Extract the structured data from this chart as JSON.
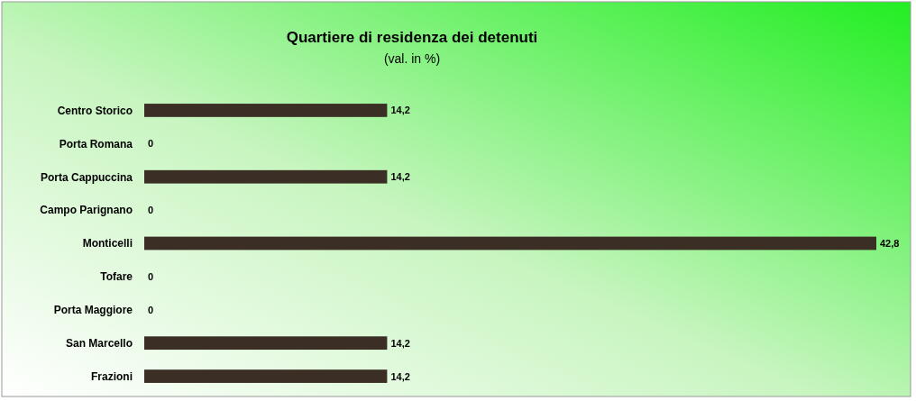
{
  "chart_data": {
    "type": "bar",
    "orientation": "horizontal",
    "title": "Quartiere di residenza dei detenuti",
    "subtitle": "(val. in %)",
    "categories": [
      "Centro Storico",
      "Porta Romana",
      "Porta Cappuccina",
      "Campo Parignano",
      "Monticelli",
      "Tofare",
      "Porta Maggiore",
      "San Marcello",
      "Frazioni"
    ],
    "values": [
      14.2,
      0,
      14.2,
      0,
      42.8,
      0,
      0,
      14.2,
      14.2
    ],
    "value_labels": [
      "14,2",
      "0",
      "14,2",
      "0",
      "42,8",
      "0",
      "0",
      "14,2",
      "14,2"
    ],
    "color": "#3b2f25"
  }
}
